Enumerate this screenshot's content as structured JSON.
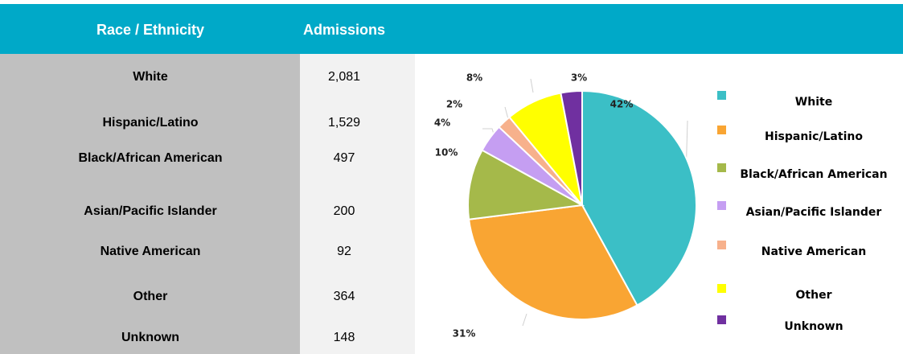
{
  "table": {
    "header": [
      "Race / Ethnicity",
      "Admissions"
    ],
    "rows": [
      [
        "White",
        "2,081"
      ],
      [
        "Hispanic/Latino",
        "1,529"
      ],
      [
        "Black/African American",
        "497"
      ],
      [
        "Asian/Pacific Islander",
        "200"
      ],
      [
        "Native American",
        "92"
      ],
      [
        "Other",
        "364"
      ],
      [
        "Unknown",
        "148"
      ]
    ]
  },
  "chart_data": {
    "type": "pie",
    "categories": [
      "White",
      "Hispanic/Latino",
      "Black/African American",
      "Asian/Pacific Islander",
      "Native American",
      "Other",
      "Unknown"
    ],
    "values": [
      42,
      31,
      10,
      4,
      2,
      8,
      3
    ],
    "value_labels": [
      "42%",
      "31%",
      "10%",
      "4%",
      "2%",
      "8%",
      "3%"
    ],
    "colors": [
      "#3bbfc6",
      "#f9a533",
      "#a5b94a",
      "#c59ef2",
      "#f7b18c",
      "#ffff00",
      "#7030a0"
    ]
  }
}
